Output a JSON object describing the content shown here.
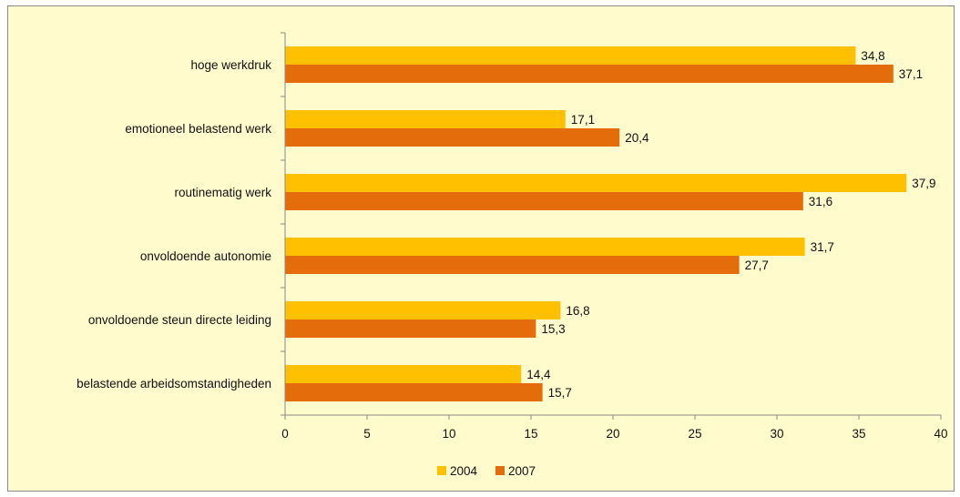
{
  "chart_data": {
    "type": "bar",
    "orientation": "horizontal",
    "categories": [
      "hoge werkdruk",
      "emotioneel belastend werk",
      "routinematig werk",
      "onvoldoende autonomie",
      "onvoldoende steun directe leiding",
      "belastende arbeidsomstandigheden"
    ],
    "series": [
      {
        "name": "2004",
        "color": "#ffc000",
        "values": [
          34.8,
          17.1,
          37.9,
          31.7,
          16.8,
          14.4
        ],
        "labels": [
          "34,8",
          "17,1",
          "37,9",
          "31,7",
          "16,8",
          "14,4"
        ]
      },
      {
        "name": "2007",
        "color": "#e46c0a",
        "values": [
          37.1,
          20.4,
          31.6,
          27.7,
          15.3,
          15.7
        ],
        "labels": [
          "37,1",
          "20,4",
          "31,6",
          "27,7",
          "15,3",
          "15,7"
        ]
      }
    ],
    "xlim": [
      0,
      40
    ],
    "xticks": [
      0,
      5,
      10,
      15,
      20,
      25,
      30,
      35,
      40
    ],
    "xticklabels": [
      "0",
      "5",
      "10",
      "15",
      "20",
      "25",
      "30",
      "35",
      "40"
    ],
    "grid": false,
    "legend_position": "bottom"
  }
}
